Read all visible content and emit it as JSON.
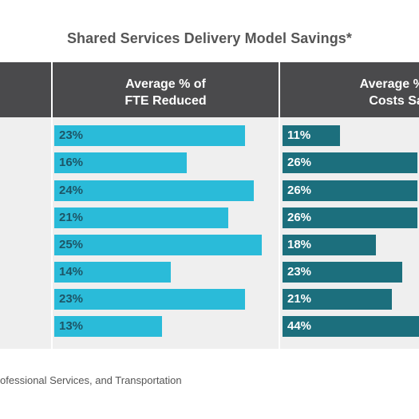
{
  "chart_data": {
    "type": "bar",
    "title": "Shared Services Delivery Model Savings*",
    "series": [
      {
        "name": "Average % of\nFTE Reduced",
        "values": [
          23,
          16,
          24,
          21,
          25,
          14,
          23,
          13
        ],
        "labels": [
          "23%",
          "16%",
          "24%",
          "21%",
          "25%",
          "14%",
          "23%",
          "13%"
        ]
      },
      {
        "name": "Average % of\nCosts Sav",
        "values": [
          11,
          26,
          26,
          26,
          18,
          23,
          21,
          44
        ],
        "labels": [
          "11%",
          "26%",
          "26%",
          "26%",
          "18%",
          "23%",
          "21%",
          "44%"
        ]
      }
    ]
  },
  "colors": {
    "fte_bar": "#2abbd9",
    "fte_text": "#1d5566",
    "costs_bar": "#1c6f7d",
    "costs_text": "#ffffff"
  },
  "footnote": "ofessional Services, and Transportation"
}
